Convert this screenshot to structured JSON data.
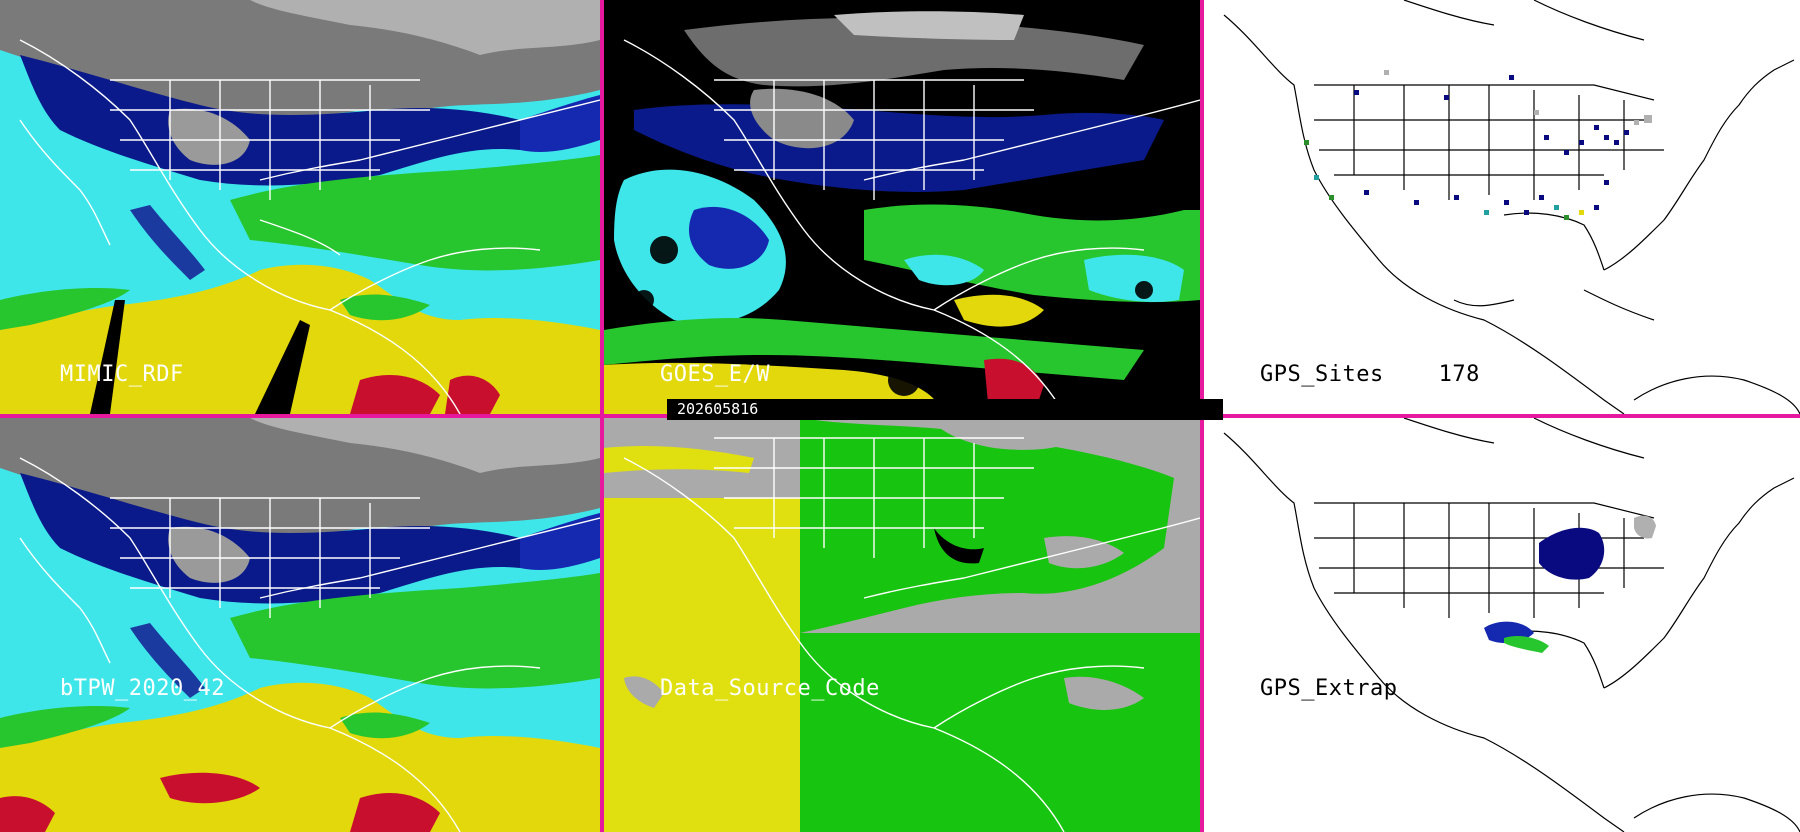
{
  "timestamp": "202605816",
  "panels": [
    {
      "id": "mimic",
      "label": "MIMIC_RDF",
      "theme": "tpw"
    },
    {
      "id": "goes",
      "label": "GOES_E/W",
      "theme": "goes"
    },
    {
      "id": "gps-sites",
      "label": "GPS_Sites    178",
      "theme": "gps"
    },
    {
      "id": "btpw",
      "label": "bTPW_2020_42",
      "theme": "tpw"
    },
    {
      "id": "data-source",
      "label": "Data_Source_Code",
      "theme": "source"
    },
    {
      "id": "gps-extrap",
      "label": "GPS_Extrap",
      "theme": "gps"
    }
  ],
  "colors": {
    "divider": "#e6189e",
    "ocean_cyan": "#3ee6ea",
    "moist_green": "#27c52e",
    "high_yellow": "#e3d80b",
    "very_high_red": "#c8102e",
    "dry_navy": "#0a1a8a",
    "source_yellow": "#e0e010",
    "source_green": "#17c40f",
    "source_gray": "#aaaaaa",
    "gps_site_navy": "#0a0a80",
    "gps_site_teal": "#20a0a0",
    "gps_site_green": "#2a8f2a",
    "gps_site_gray": "#b0b0b0"
  }
}
